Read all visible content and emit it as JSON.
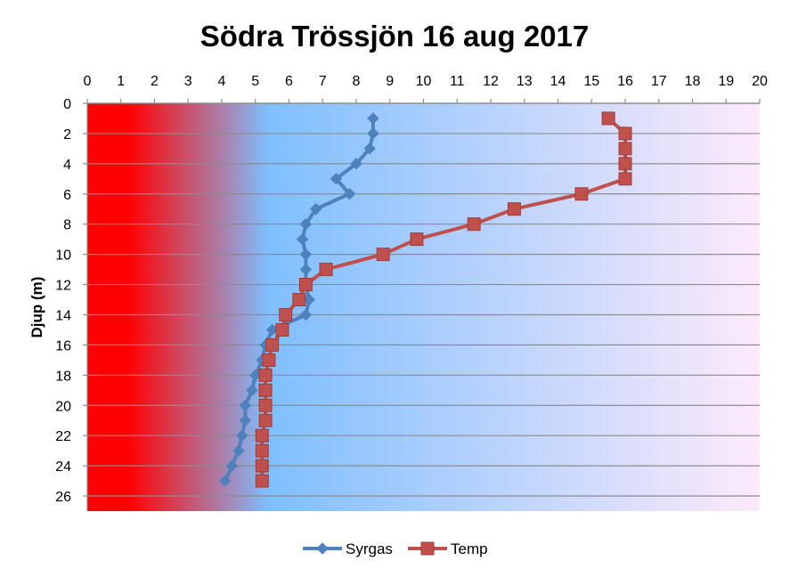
{
  "chart_data": {
    "type": "line",
    "title": "Södra Trössjön 16 aug 2017",
    "ylabel": "Djup (m)",
    "xlabel": "",
    "xlim": [
      0,
      20
    ],
    "ylim": [
      0,
      27
    ],
    "y_inverted": true,
    "x_axis_position": "top",
    "x_ticks": [
      0,
      1,
      2,
      3,
      4,
      5,
      6,
      7,
      8,
      9,
      10,
      11,
      12,
      13,
      14,
      15,
      16,
      17,
      18,
      19,
      20
    ],
    "y_ticks": [
      0,
      2,
      4,
      6,
      8,
      10,
      12,
      14,
      16,
      18,
      20,
      22,
      24,
      26
    ],
    "grid": "horizontal",
    "legend_position": "bottom",
    "background_gradient": [
      "#ff0000",
      "#7fbfff",
      "#fdeafb"
    ],
    "series": [
      {
        "name": "Syrgas",
        "color": "#4f81bd",
        "marker": "diamond",
        "points": [
          {
            "x": 8.5,
            "y": 1
          },
          {
            "x": 8.5,
            "y": 2
          },
          {
            "x": 8.4,
            "y": 3
          },
          {
            "x": 8.0,
            "y": 4
          },
          {
            "x": 7.4,
            "y": 5
          },
          {
            "x": 7.8,
            "y": 6
          },
          {
            "x": 6.8,
            "y": 7
          },
          {
            "x": 6.5,
            "y": 8
          },
          {
            "x": 6.4,
            "y": 9
          },
          {
            "x": 6.5,
            "y": 10
          },
          {
            "x": 6.5,
            "y": 11
          },
          {
            "x": 6.5,
            "y": 12
          },
          {
            "x": 6.6,
            "y": 13
          },
          {
            "x": 6.5,
            "y": 14
          },
          {
            "x": 5.5,
            "y": 15
          },
          {
            "x": 5.3,
            "y": 16
          },
          {
            "x": 5.2,
            "y": 17
          },
          {
            "x": 5.0,
            "y": 18
          },
          {
            "x": 4.9,
            "y": 19
          },
          {
            "x": 4.7,
            "y": 20
          },
          {
            "x": 4.7,
            "y": 21
          },
          {
            "x": 4.6,
            "y": 22
          },
          {
            "x": 4.5,
            "y": 23
          },
          {
            "x": 4.3,
            "y": 24
          },
          {
            "x": 4.1,
            "y": 25
          }
        ]
      },
      {
        "name": "Temp",
        "color": "#c0504d",
        "marker": "square",
        "points": [
          {
            "x": 15.5,
            "y": 1
          },
          {
            "x": 16.0,
            "y": 2
          },
          {
            "x": 16.0,
            "y": 3
          },
          {
            "x": 16.0,
            "y": 4
          },
          {
            "x": 16.0,
            "y": 5
          },
          {
            "x": 14.7,
            "y": 6
          },
          {
            "x": 12.7,
            "y": 7
          },
          {
            "x": 11.5,
            "y": 8
          },
          {
            "x": 9.8,
            "y": 9
          },
          {
            "x": 8.8,
            "y": 10
          },
          {
            "x": 7.1,
            "y": 11
          },
          {
            "x": 6.5,
            "y": 12
          },
          {
            "x": 6.3,
            "y": 13
          },
          {
            "x": 5.9,
            "y": 14
          },
          {
            "x": 5.8,
            "y": 15
          },
          {
            "x": 5.5,
            "y": 16
          },
          {
            "x": 5.4,
            "y": 17
          },
          {
            "x": 5.3,
            "y": 18
          },
          {
            "x": 5.3,
            "y": 19
          },
          {
            "x": 5.3,
            "y": 20
          },
          {
            "x": 5.3,
            "y": 21
          },
          {
            "x": 5.2,
            "y": 22
          },
          {
            "x": 5.2,
            "y": 23
          },
          {
            "x": 5.2,
            "y": 24
          },
          {
            "x": 5.2,
            "y": 25
          }
        ]
      }
    ]
  }
}
